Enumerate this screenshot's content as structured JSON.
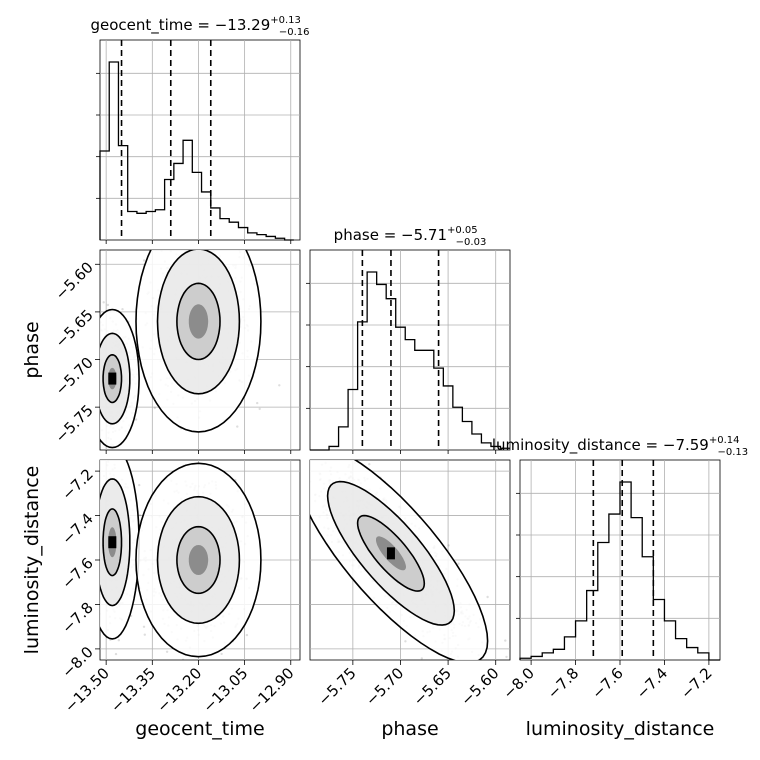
{
  "chart_data": {
    "type": "corner",
    "parameters": [
      "geocent_time",
      "phase",
      "luminosity_distance"
    ],
    "axis_labels": {
      "geocent_time": "geocent_time",
      "phase": "phase",
      "luminosity_distance": "luminosity_distance"
    },
    "ranges": {
      "geocent_time": [
        -13.52,
        -12.87
      ],
      "phase": [
        -5.795,
        -5.585
      ],
      "luminosity_distance": [
        -8.05,
        -7.15
      ]
    },
    "ticks": {
      "geocent_time": {
        "values": [
          -13.5,
          -13.35,
          -13.2,
          -13.05,
          -12.9
        ],
        "labels": [
          "−13.50",
          "−13.35",
          "−13.20",
          "−13.05",
          "−12.90"
        ]
      },
      "phase": {
        "values": [
          -5.75,
          -5.7,
          -5.65,
          -5.6
        ],
        "labels": [
          "−5.75",
          "−5.70",
          "−5.65",
          "−5.60"
        ]
      },
      "luminosity_distance": {
        "values": [
          -8.0,
          -7.8,
          -7.6,
          -7.4,
          -7.2
        ],
        "labels": [
          "−8.0",
          "−7.8",
          "−7.6",
          "−7.4",
          "−7.2"
        ]
      }
    },
    "titles": [
      {
        "param": "geocent_time",
        "text": "geocent_time = −13.29",
        "sup": "+0.13",
        "sub": "−0.16"
      },
      {
        "param": "phase",
        "text": "phase = −5.71",
        "sup": "+0.05",
        "sub": "−0.03"
      },
      {
        "param": "luminosity_distance",
        "text": "luminosity_distance = −7.59",
        "sup": "+0.14",
        "sub": "−0.13"
      }
    ],
    "quantiles": {
      "geocent_time": [
        -13.45,
        -13.29,
        -13.16
      ],
      "phase": [
        -5.74,
        -5.71,
        -5.66
      ],
      "luminosity_distance": [
        -7.72,
        -7.59,
        -7.45
      ]
    },
    "histograms": {
      "geocent_time": {
        "edges": [
          -13.52,
          -13.49,
          -13.46,
          -13.43,
          -13.4,
          -13.37,
          -13.34,
          -13.31,
          -13.28,
          -13.25,
          -13.22,
          -13.19,
          -13.16,
          -13.13,
          -13.1,
          -13.07,
          -13.04,
          -13.01,
          -12.98,
          -12.95,
          -12.92,
          -12.89
        ],
        "counts": [
          0.5,
          1.0,
          0.53,
          0.16,
          0.15,
          0.16,
          0.17,
          0.34,
          0.43,
          0.56,
          0.38,
          0.27,
          0.18,
          0.12,
          0.1,
          0.07,
          0.04,
          0.03,
          0.02,
          0.01,
          0.0
        ]
      },
      "phase": {
        "edges": [
          -5.795,
          -5.785,
          -5.775,
          -5.765,
          -5.755,
          -5.745,
          -5.735,
          -5.725,
          -5.715,
          -5.705,
          -5.695,
          -5.685,
          -5.675,
          -5.665,
          -5.655,
          -5.645,
          -5.635,
          -5.625,
          -5.615,
          -5.605,
          -5.595,
          -5.585
        ],
        "counts": [
          0.0,
          0.0,
          0.02,
          0.13,
          0.34,
          0.72,
          1.0,
          0.93,
          0.85,
          0.69,
          0.62,
          0.56,
          0.56,
          0.46,
          0.36,
          0.24,
          0.16,
          0.09,
          0.04,
          0.02,
          0.01
        ]
      },
      "luminosity_distance": {
        "edges": [
          -8.05,
          -8.0,
          -7.95,
          -7.9,
          -7.85,
          -7.8,
          -7.75,
          -7.7,
          -7.65,
          -7.6,
          -7.55,
          -7.5,
          -7.45,
          -7.4,
          -7.35,
          -7.3,
          -7.25,
          -7.2,
          -7.15
        ],
        "counts": [
          0.01,
          0.02,
          0.04,
          0.06,
          0.13,
          0.22,
          0.39,
          0.66,
          0.82,
          1.0,
          0.8,
          0.58,
          0.34,
          0.22,
          0.12,
          0.07,
          0.04,
          0.0
        ]
      }
    },
    "pair_modes": {
      "phase_vs_geocent_time": [
        {
          "x": -13.48,
          "y": -5.72,
          "sx": 0.03,
          "sy": 0.025,
          "w": 0.45
        },
        {
          "x": -13.2,
          "y": -5.66,
          "sx": 0.07,
          "sy": 0.04,
          "w": 0.55
        }
      ],
      "luminosity_distance_vs_geocent_time": [
        {
          "x": -13.48,
          "y": -7.52,
          "sx": 0.03,
          "sy": 0.15,
          "w": 0.45
        },
        {
          "x": -13.2,
          "y": -7.6,
          "sx": 0.07,
          "sy": 0.15,
          "w": 0.55
        }
      ],
      "luminosity_distance_vs_phase": [
        {
          "x": -5.71,
          "y": -7.57,
          "sx": 0.035,
          "sy": 0.17,
          "w": 1.0,
          "rho": -0.8
        }
      ]
    },
    "contour_levels": [
      "0.39",
      "0.86",
      "0.99"
    ],
    "grid": true
  }
}
